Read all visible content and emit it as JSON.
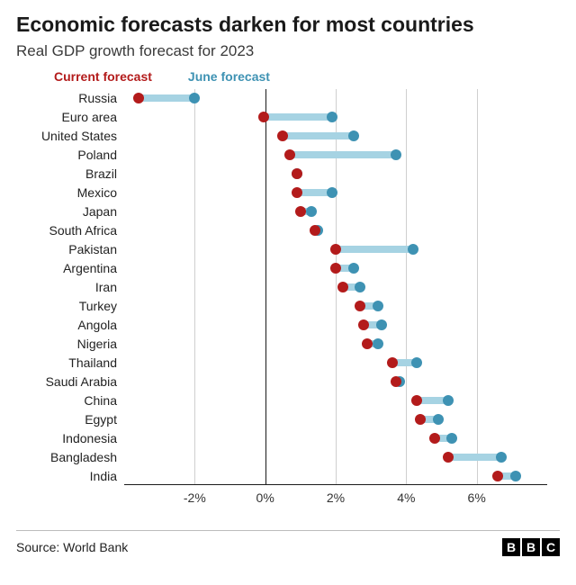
{
  "title": "Economic forecasts darken for most countries",
  "subtitle": "Real GDP growth forecast for 2023",
  "source": "Source: World Bank",
  "legend": {
    "current": {
      "label": "Current forecast",
      "color": "#b31b1b"
    },
    "june": {
      "label": "June forecast",
      "color": "#3e92b3"
    }
  },
  "chart": {
    "type": "dumbbell",
    "x_min": -4,
    "x_max": 8,
    "zero": 0,
    "ticks": [
      {
        "value": -2,
        "label": "-2%"
      },
      {
        "value": 0,
        "label": "0%"
      },
      {
        "value": 2,
        "label": "2%"
      },
      {
        "value": 4,
        "label": "4%"
      },
      {
        "value": 6,
        "label": "6%"
      }
    ],
    "connector_color": "#a6d3e3",
    "current_color": "#b31b1b",
    "june_color": "#3e92b3",
    "dot_radius": 6,
    "connector_height": 8,
    "background_color": "#ffffff",
    "series": [
      {
        "label": "Russia",
        "current": -3.6,
        "june": -2.0
      },
      {
        "label": "Euro area",
        "current": -0.05,
        "june": 1.9
      },
      {
        "label": "United States",
        "current": 0.5,
        "june": 2.5
      },
      {
        "label": "Poland",
        "current": 0.7,
        "june": 3.7
      },
      {
        "label": "Brazil",
        "current": 0.9,
        "june": 0.9
      },
      {
        "label": "Mexico",
        "current": 0.9,
        "june": 1.9
      },
      {
        "label": "Japan",
        "current": 1.0,
        "june": 1.3
      },
      {
        "label": "South Africa",
        "current": 1.4,
        "june": 1.5
      },
      {
        "label": "Pakistan",
        "current": 2.0,
        "june": 4.2
      },
      {
        "label": "Argentina",
        "current": 2.0,
        "june": 2.5
      },
      {
        "label": "Iran",
        "current": 2.2,
        "june": 2.7
      },
      {
        "label": "Turkey",
        "current": 2.7,
        "june": 3.2
      },
      {
        "label": "Angola",
        "current": 2.8,
        "june": 3.3
      },
      {
        "label": "Nigeria",
        "current": 2.9,
        "june": 3.2
      },
      {
        "label": "Thailand",
        "current": 3.6,
        "june": 4.3
      },
      {
        "label": "Saudi Arabia",
        "current": 3.7,
        "june": 3.8
      },
      {
        "label": "China",
        "current": 4.3,
        "june": 5.2
      },
      {
        "label": "Egypt",
        "current": 4.4,
        "june": 4.9
      },
      {
        "label": "Indonesia",
        "current": 4.8,
        "june": 5.3
      },
      {
        "label": "Bangladesh",
        "current": 5.2,
        "june": 6.7
      },
      {
        "label": "India",
        "current": 6.6,
        "june": 7.1
      }
    ]
  },
  "logo": {
    "letters": [
      "B",
      "B",
      "C"
    ]
  }
}
